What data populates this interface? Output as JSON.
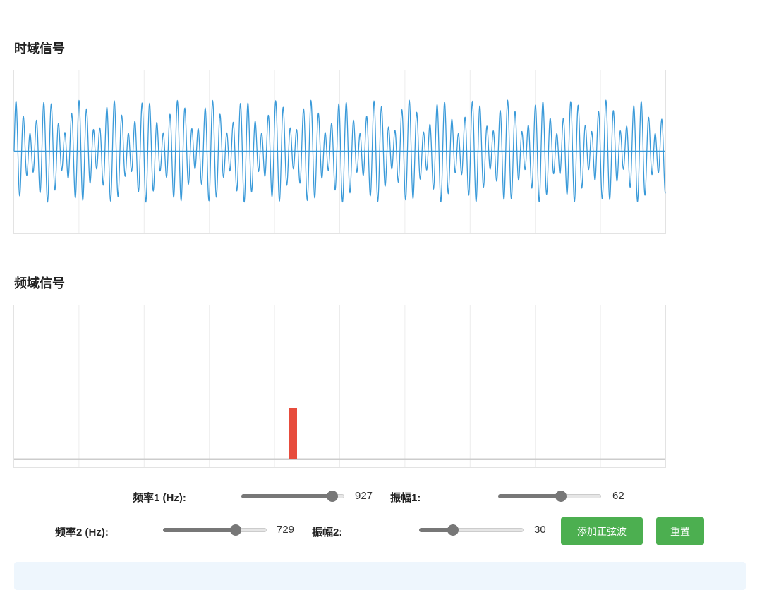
{
  "sections": {
    "time_title": "时域信号",
    "freq_title": "频域信号"
  },
  "controls": {
    "freq1": {
      "label": "频率1 (Hz):",
      "value": 927
    },
    "amp1": {
      "label": "振幅1:",
      "value": 62
    },
    "freq2": {
      "label": "频率2 (Hz):",
      "value": 729
    },
    "amp2": {
      "label": "振幅2:",
      "value": 30
    }
  },
  "buttons": {
    "add": "添加正弦波",
    "reset": "重置"
  }
}
